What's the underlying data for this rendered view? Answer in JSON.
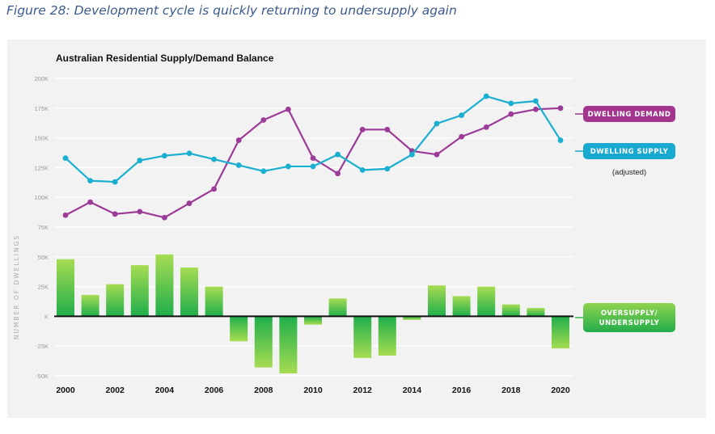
{
  "caption": "Figure 28: Development cycle is quickly returning to undersupply again",
  "chart_data": {
    "type": "bar+line",
    "title": "Australian Residential Supply/Demand Balance",
    "ylabel": "NUMBER OF DWELLINGS",
    "ylim": [
      -50000,
      200000
    ],
    "yticks": [
      {
        "v": 200000,
        "label": "200K"
      },
      {
        "v": 175000,
        "label": "175K"
      },
      {
        "v": 150000,
        "label": "150K"
      },
      {
        "v": 125000,
        "label": "125K"
      },
      {
        "v": 100000,
        "label": "100K"
      },
      {
        "v": 75000,
        "label": "75K"
      },
      {
        "v": 50000,
        "label": "50K"
      },
      {
        "v": 25000,
        "label": "25K"
      },
      {
        "v": 0,
        "label": "K"
      },
      {
        "v": -25000,
        "label": "-25K"
      },
      {
        "v": -50000,
        "label": "-50K"
      }
    ],
    "x": [
      2000,
      2001,
      2002,
      2003,
      2004,
      2005,
      2006,
      2007,
      2008,
      2009,
      2010,
      2011,
      2012,
      2013,
      2014,
      2015,
      2016,
      2017,
      2018,
      2019,
      2020
    ],
    "xtick_labels": [
      "2000",
      "2002",
      "2004",
      "2006",
      "2008",
      "2010",
      "2012",
      "2014",
      "2016",
      "2018",
      "2020"
    ],
    "series": [
      {
        "name": "DWELLING DEMAND",
        "type": "line",
        "color": "#9b3a97",
        "values": [
          85000,
          96000,
          86000,
          88000,
          83000,
          95000,
          107000,
          148000,
          165000,
          174000,
          133000,
          120000,
          157000,
          157000,
          139000,
          136000,
          151000,
          159000,
          170000,
          174000,
          175000
        ]
      },
      {
        "name": "DWELLING SUPPLY",
        "type": "line",
        "color": "#1aafd0",
        "values": [
          133000,
          114000,
          113000,
          131000,
          135000,
          137000,
          132000,
          127000,
          122000,
          126000,
          126000,
          136000,
          123000,
          124000,
          136000,
          162000,
          169000,
          185000,
          179000,
          181000,
          148000
        ]
      },
      {
        "name": "OVERSUPPLY/ UNDERSUPPLY",
        "type": "bar",
        "color": "#2dbb4e",
        "values": [
          48000,
          18000,
          27000,
          43000,
          52000,
          41000,
          25000,
          -21000,
          -43000,
          -48000,
          -7000,
          15000,
          -35000,
          -33000,
          -3000,
          26000,
          17000,
          25000,
          10000,
          7000,
          -27000
        ]
      }
    ],
    "legend": [
      {
        "label": "DWELLING DEMAND",
        "color": "#a3358f"
      },
      {
        "label": "DWELLING SUPPLY",
        "color": "#17a9cf"
      },
      {
        "label": "OVERSUPPLY/",
        "label2": "UNDERSUPPLY",
        "color": "#32b84a"
      }
    ],
    "supply_note": "(adjusted)",
    "legend_position": "right",
    "grid": true
  }
}
